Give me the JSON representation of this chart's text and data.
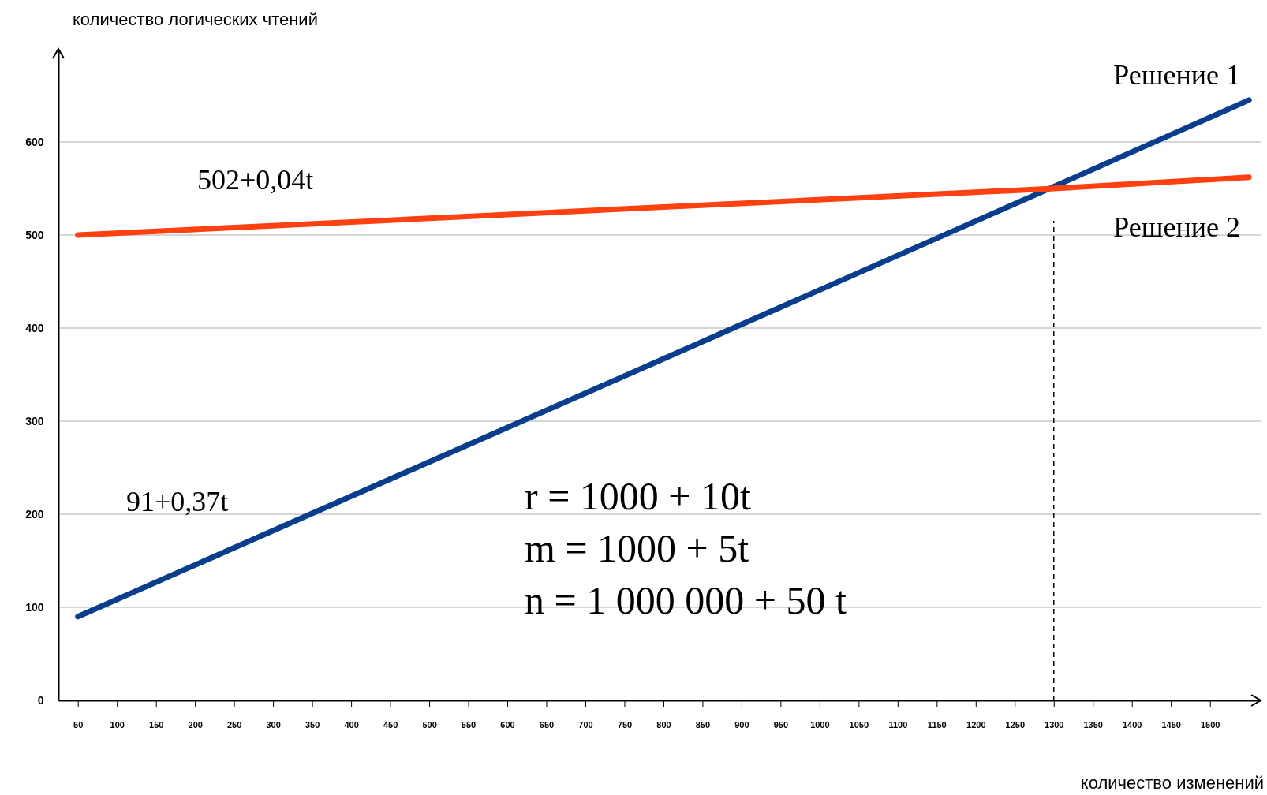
{
  "chart_data": {
    "type": "line",
    "xlabel": "количество изменений",
    "ylabel": "количество логических чтений",
    "xlim": [
      25,
      1565
    ],
    "ylim": [
      0,
      700
    ],
    "xticks": [
      50,
      100,
      150,
      200,
      250,
      300,
      350,
      400,
      450,
      500,
      550,
      600,
      650,
      700,
      750,
      800,
      850,
      900,
      950,
      1000,
      1050,
      1100,
      1150,
      1200,
      1250,
      1300,
      1350,
      1400,
      1450,
      1500
    ],
    "yticks": [
      0,
      100,
      200,
      300,
      400,
      500,
      600
    ],
    "grid": "y",
    "series": [
      {
        "name": "Решение 1",
        "color": "#0a3d8c",
        "x": [
          50,
          800,
          1300,
          1550
        ],
        "values": [
          90,
          367,
          552,
          645
        ]
      },
      {
        "name": "Решение 2",
        "color": "#ff4010",
        "x": [
          50,
          800,
          1300,
          1550
        ],
        "values": [
          500,
          530,
          550,
          562
        ]
      }
    ],
    "ref_lines": [
      {
        "axis": "x",
        "value": 1300,
        "line_style": "dashed",
        "color": "#000000"
      }
    ],
    "annotations": [
      "502+0,04t",
      "91+0,37t",
      "r = 1000 + 10t",
      "m = 1000 + 5t",
      "n = 1 000 000 + 50 t"
    ]
  }
}
